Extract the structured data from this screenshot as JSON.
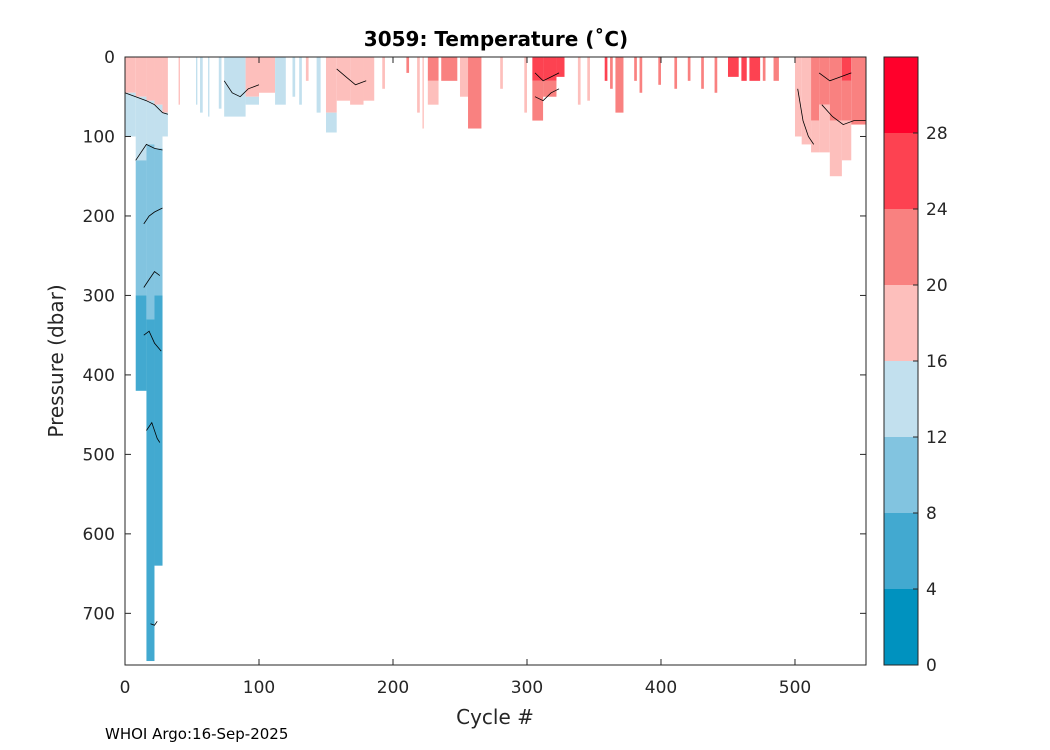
{
  "footer": "WHOI Argo:16-Sep-2025",
  "chart_data": {
    "type": "heatmap",
    "title": "3059:  Temperature (˚C)",
    "xlabel": "Cycle #",
    "ylabel": "Pressure (dbar)",
    "xlim": [
      0,
      553
    ],
    "ylim": [
      0,
      765
    ],
    "y_reversed": true,
    "xticks": [
      0,
      100,
      200,
      300,
      400,
      500
    ],
    "yticks": [
      0,
      100,
      200,
      300,
      400,
      500,
      600,
      700
    ],
    "colorbar": {
      "range": [
        0,
        32
      ],
      "ticks": [
        0,
        4,
        8,
        12,
        16,
        20,
        24,
        28
      ],
      "bins": [
        {
          "lo": 0,
          "hi": 4,
          "color": "#0092bf"
        },
        {
          "lo": 4,
          "hi": 8,
          "color": "#42a9d0"
        },
        {
          "lo": 8,
          "hi": 12,
          "color": "#82c4e0"
        },
        {
          "lo": 12,
          "hi": 16,
          "color": "#c2e0ee"
        },
        {
          "lo": 16,
          "hi": 20,
          "color": "#fdbfbc"
        },
        {
          "lo": 20,
          "hi": 24,
          "color": "#f98180"
        },
        {
          "lo": 24,
          "hi": 28,
          "color": "#fd4251"
        },
        {
          "lo": 28,
          "hi": 32,
          "color": "#ff002b"
        }
      ]
    },
    "profiles": [
      {
        "x": [
          0,
          8
        ],
        "layers": [
          [
            0,
            45,
            18
          ],
          [
            45,
            100,
            14
          ]
        ]
      },
      {
        "x": [
          8,
          16
        ],
        "layers": [
          [
            0,
            50,
            18
          ],
          [
            50,
            130,
            14
          ],
          [
            130,
            300,
            10
          ],
          [
            300,
            420,
            6
          ]
        ]
      },
      {
        "x": [
          16,
          22
        ],
        "layers": [
          [
            0,
            55,
            18
          ],
          [
            55,
            110,
            14
          ],
          [
            110,
            330,
            10
          ],
          [
            330,
            760,
            6
          ]
        ]
      },
      {
        "x": [
          22,
          28
        ],
        "layers": [
          [
            0,
            60,
            18
          ],
          [
            60,
            115,
            14
          ],
          [
            115,
            300,
            10
          ],
          [
            300,
            640,
            6
          ]
        ]
      },
      {
        "x": [
          28,
          32
        ],
        "layers": [
          [
            0,
            70,
            17
          ],
          [
            70,
            100,
            14
          ]
        ]
      },
      {
        "x": [
          40,
          41
        ],
        "layers": [
          [
            0,
            60,
            18
          ]
        ]
      },
      {
        "x": [
          53,
          54
        ],
        "layers": [
          [
            0,
            60,
            14
          ]
        ]
      },
      {
        "x": [
          56,
          58
        ],
        "layers": [
          [
            0,
            70,
            14
          ]
        ]
      },
      {
        "x": [
          62,
          63
        ],
        "layers": [
          [
            0,
            75,
            14
          ]
        ]
      },
      {
        "x": [
          70,
          72
        ],
        "layers": [
          [
            0,
            65,
            14
          ]
        ]
      },
      {
        "x": [
          74,
          90
        ],
        "layers": [
          [
            0,
            75,
            14
          ]
        ]
      },
      {
        "x": [
          90,
          100
        ],
        "layers": [
          [
            0,
            50,
            17
          ],
          [
            50,
            60,
            14
          ]
        ]
      },
      {
        "x": [
          100,
          112
        ],
        "layers": [
          [
            0,
            45,
            17
          ]
        ]
      },
      {
        "x": [
          112,
          120
        ],
        "layers": [
          [
            0,
            60,
            14
          ]
        ]
      },
      {
        "x": [
          125,
          127
        ],
        "layers": [
          [
            0,
            50,
            14
          ]
        ]
      },
      {
        "x": [
          130,
          132
        ],
        "layers": [
          [
            0,
            60,
            14
          ]
        ]
      },
      {
        "x": [
          135,
          137
        ],
        "layers": [
          [
            0,
            30,
            17
          ]
        ]
      },
      {
        "x": [
          143,
          146
        ],
        "layers": [
          [
            0,
            70,
            14
          ]
        ]
      },
      {
        "x": [
          150,
          158
        ],
        "layers": [
          [
            0,
            70,
            17
          ],
          [
            70,
            95,
            14
          ]
        ]
      },
      {
        "x": [
          158,
          168
        ],
        "layers": [
          [
            0,
            55,
            17
          ]
        ]
      },
      {
        "x": [
          168,
          178
        ],
        "layers": [
          [
            0,
            60,
            17
          ]
        ]
      },
      {
        "x": [
          178,
          186
        ],
        "layers": [
          [
            0,
            55,
            17
          ]
        ]
      },
      {
        "x": [
          192,
          194
        ],
        "layers": [
          [
            0,
            40,
            17
          ]
        ]
      },
      {
        "x": [
          210,
          212
        ],
        "layers": [
          [
            0,
            20,
            21
          ]
        ]
      },
      {
        "x": [
          218,
          220
        ],
        "layers": [
          [
            0,
            70,
            17
          ]
        ]
      },
      {
        "x": [
          222,
          223
        ],
        "layers": [
          [
            0,
            90,
            17
          ]
        ]
      },
      {
        "x": [
          226,
          234
        ],
        "layers": [
          [
            0,
            30,
            21
          ],
          [
            30,
            60,
            17
          ]
        ]
      },
      {
        "x": [
          236,
          248
        ],
        "layers": [
          [
            0,
            30,
            21
          ]
        ]
      },
      {
        "x": [
          250,
          256
        ],
        "layers": [
          [
            0,
            50,
            17
          ]
        ]
      },
      {
        "x": [
          256,
          266
        ],
        "layers": [
          [
            0,
            90,
            21
          ]
        ]
      },
      {
        "x": [
          280,
          282
        ],
        "layers": [
          [
            0,
            40,
            17
          ]
        ]
      },
      {
        "x": [
          298,
          300
        ],
        "layers": [
          [
            0,
            70,
            17
          ]
        ]
      },
      {
        "x": [
          304,
          312
        ],
        "layers": [
          [
            0,
            30,
            25
          ],
          [
            30,
            80,
            21
          ]
        ]
      },
      {
        "x": [
          312,
          322
        ],
        "layers": [
          [
            0,
            30,
            25
          ],
          [
            30,
            50,
            21
          ]
        ]
      },
      {
        "x": [
          322,
          328
        ],
        "layers": [
          [
            0,
            25,
            25
          ]
        ]
      },
      {
        "x": [
          338,
          340
        ],
        "layers": [
          [
            0,
            60,
            17
          ]
        ]
      },
      {
        "x": [
          345,
          347
        ],
        "layers": [
          [
            0,
            55,
            17
          ]
        ]
      },
      {
        "x": [
          358,
          360
        ],
        "layers": [
          [
            0,
            30,
            25
          ]
        ]
      },
      {
        "x": [
          362,
          364
        ],
        "layers": [
          [
            0,
            40,
            21
          ]
        ]
      },
      {
        "x": [
          366,
          372
        ],
        "layers": [
          [
            0,
            70,
            21
          ]
        ]
      },
      {
        "x": [
          380,
          382
        ],
        "layers": [
          [
            0,
            30,
            21
          ]
        ]
      },
      {
        "x": [
          384,
          386
        ],
        "layers": [
          [
            0,
            45,
            21
          ]
        ]
      },
      {
        "x": [
          398,
          400
        ],
        "layers": [
          [
            0,
            35,
            21
          ]
        ]
      },
      {
        "x": [
          410,
          412
        ],
        "layers": [
          [
            0,
            40,
            21
          ]
        ]
      },
      {
        "x": [
          420,
          422
        ],
        "layers": [
          [
            0,
            30,
            21
          ]
        ]
      },
      {
        "x": [
          430,
          432
        ],
        "layers": [
          [
            0,
            40,
            21
          ]
        ]
      },
      {
        "x": [
          440,
          442
        ],
        "layers": [
          [
            0,
            45,
            21
          ]
        ]
      },
      {
        "x": [
          450,
          458
        ],
        "layers": [
          [
            0,
            25,
            25
          ]
        ]
      },
      {
        "x": [
          460,
          464
        ],
        "layers": [
          [
            0,
            30,
            25
          ]
        ]
      },
      {
        "x": [
          466,
          474
        ],
        "layers": [
          [
            0,
            30,
            25
          ]
        ]
      },
      {
        "x": [
          476,
          478
        ],
        "layers": [
          [
            0,
            30,
            21
          ]
        ]
      },
      {
        "x": [
          484,
          488
        ],
        "layers": [
          [
            0,
            30,
            21
          ]
        ]
      },
      {
        "x": [
          500,
          505
        ],
        "layers": [
          [
            0,
            100,
            17
          ]
        ]
      },
      {
        "x": [
          505,
          512
        ],
        "layers": [
          [
            0,
            110,
            17
          ]
        ]
      },
      {
        "x": [
          512,
          518
        ],
        "layers": [
          [
            0,
            80,
            21
          ],
          [
            80,
            120,
            17
          ]
        ]
      },
      {
        "x": [
          518,
          526
        ],
        "layers": [
          [
            0,
            60,
            21
          ],
          [
            60,
            120,
            17
          ]
        ]
      },
      {
        "x": [
          526,
          535
        ],
        "layers": [
          [
            0,
            80,
            21
          ],
          [
            80,
            150,
            17
          ]
        ]
      },
      {
        "x": [
          535,
          542
        ],
        "layers": [
          [
            0,
            30,
            25
          ],
          [
            30,
            80,
            21
          ],
          [
            80,
            130,
            17
          ]
        ]
      },
      {
        "x": [
          542,
          553
        ],
        "layers": [
          [
            0,
            85,
            21
          ]
        ]
      }
    ],
    "contours": [
      {
        "level": 16,
        "points": [
          [
            0,
            45
          ],
          [
            8,
            50
          ],
          [
            16,
            55
          ],
          [
            22,
            60
          ],
          [
            28,
            70
          ],
          [
            32,
            72
          ]
        ]
      },
      {
        "level": 12,
        "points": [
          [
            8,
            130
          ],
          [
            16,
            110
          ],
          [
            22,
            115
          ],
          [
            28,
            117
          ]
        ]
      },
      {
        "level": 8,
        "points": [
          [
            14,
            210
          ],
          [
            18,
            200
          ],
          [
            22,
            195
          ],
          [
            28,
            190
          ]
        ]
      },
      {
        "level": 8,
        "points": [
          [
            14,
            290
          ],
          [
            18,
            280
          ],
          [
            22,
            270
          ],
          [
            26,
            275
          ]
        ]
      },
      {
        "level": 8,
        "points": [
          [
            14,
            350
          ],
          [
            18,
            345
          ],
          [
            22,
            360
          ],
          [
            27,
            370
          ]
        ]
      },
      {
        "level": 4,
        "points": [
          [
            16,
            470
          ],
          [
            20,
            460
          ],
          [
            24,
            480
          ],
          [
            26,
            485
          ]
        ]
      },
      {
        "level": 4,
        "points": [
          [
            19,
            713
          ],
          [
            22,
            715
          ],
          [
            24,
            710
          ]
        ]
      },
      {
        "level": 16,
        "points": [
          [
            74,
            30
          ],
          [
            80,
            45
          ],
          [
            86,
            50
          ],
          [
            92,
            40
          ],
          [
            100,
            35
          ]
        ]
      },
      {
        "level": 20,
        "points": [
          [
            158,
            15
          ],
          [
            165,
            25
          ],
          [
            172,
            35
          ],
          [
            180,
            30
          ]
        ]
      },
      {
        "level": 24,
        "points": [
          [
            306,
            20
          ],
          [
            312,
            30
          ],
          [
            318,
            25
          ],
          [
            324,
            20
          ]
        ]
      },
      {
        "level": 20,
        "points": [
          [
            306,
            50
          ],
          [
            312,
            55
          ],
          [
            318,
            45
          ],
          [
            324,
            40
          ]
        ]
      },
      {
        "level": 20,
        "points": [
          [
            502,
            40
          ],
          [
            506,
            80
          ],
          [
            510,
            100
          ],
          [
            514,
            110
          ]
        ]
      },
      {
        "level": 24,
        "points": [
          [
            518,
            20
          ],
          [
            526,
            30
          ],
          [
            534,
            25
          ],
          [
            542,
            20
          ]
        ]
      },
      {
        "level": 20,
        "points": [
          [
            520,
            60
          ],
          [
            528,
            75
          ],
          [
            536,
            85
          ],
          [
            544,
            80
          ],
          [
            553,
            80
          ]
        ]
      }
    ]
  }
}
